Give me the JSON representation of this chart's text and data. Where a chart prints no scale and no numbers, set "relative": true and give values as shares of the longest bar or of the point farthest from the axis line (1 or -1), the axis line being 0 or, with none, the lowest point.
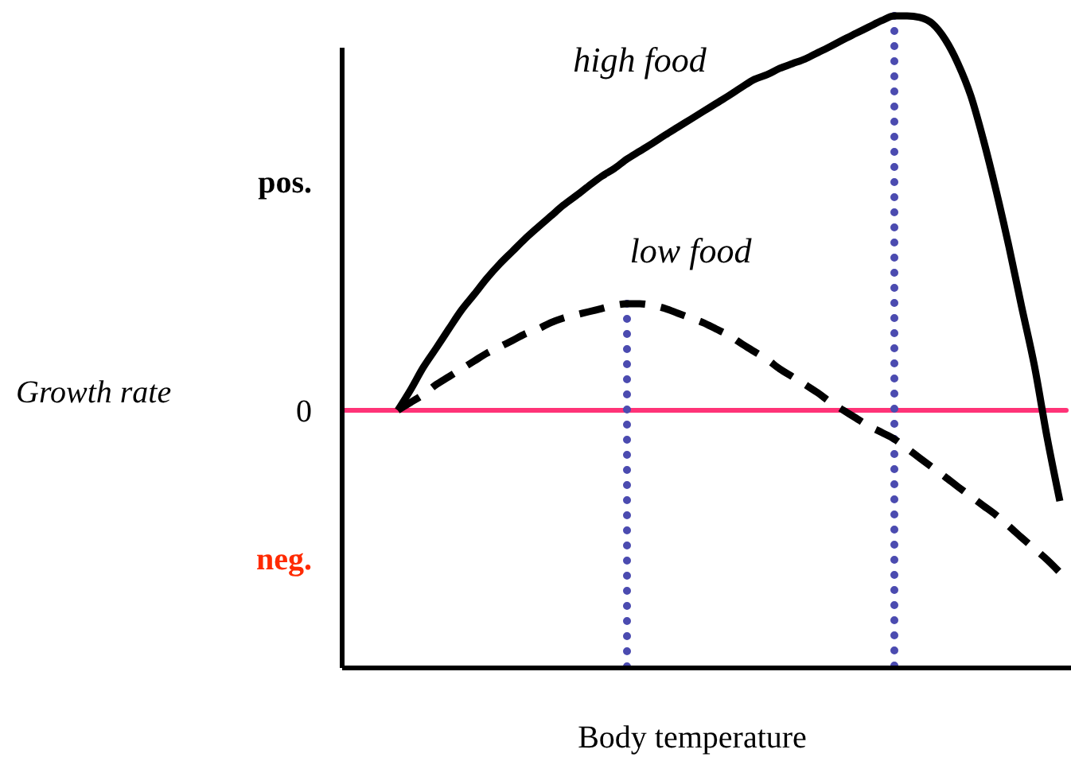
{
  "chart_data": {
    "type": "line",
    "relative": true,
    "xlabel": "Body temperature",
    "categories": [
      null,
      null,
      null,
      null,
      null,
      null,
      null,
      null,
      null,
      null,
      null,
      null,
      null,
      null,
      null,
      null,
      null,
      null,
      null,
      null,
      null,
      null,
      null,
      null,
      null,
      null,
      null,
      null,
      null,
      null,
      null,
      null,
      null,
      null,
      null,
      null,
      null,
      null,
      null,
      null,
      null,
      null,
      null,
      null,
      null,
      null,
      null,
      null,
      null,
      null,
      null,
      null,
      null
    ],
    "series": [
      {
        "name": "high food",
        "color": "#000000",
        "line_style": "solid",
        "values": [
          0,
          0.052,
          0.109,
          0.157,
          0.206,
          0.254,
          0.294,
          0.335,
          0.371,
          0.403,
          0.435,
          0.464,
          0.492,
          0.52,
          0.544,
          0.569,
          0.593,
          0.613,
          0.637,
          0.657,
          0.677,
          0.698,
          0.718,
          0.738,
          0.758,
          0.778,
          0.798,
          0.819,
          0.839,
          0.851,
          0.867,
          0.879,
          0.891,
          0.907,
          0.923,
          0.94,
          0.956,
          0.972,
          0.988,
          1,
          1,
          0.996,
          0.98,
          0.94,
          0.879,
          0.798,
          0.685,
          0.556,
          0.415,
          0.262,
          0.113,
          -0.069,
          -0.23
        ]
      },
      {
        "name": "low food",
        "color": "#000000",
        "line_style": "dashed",
        "values": [
          0,
          0.02,
          0.04,
          0.065,
          0.085,
          0.105,
          0.125,
          0.145,
          0.161,
          0.177,
          0.194,
          0.206,
          0.222,
          0.234,
          0.242,
          0.25,
          0.258,
          0.266,
          0.27,
          0.27,
          0.266,
          0.258,
          0.246,
          0.234,
          0.222,
          0.206,
          0.19,
          0.169,
          0.149,
          0.129,
          0.105,
          0.085,
          0.065,
          0.044,
          0.02,
          0,
          -0.02,
          -0.04,
          -0.056,
          -0.073,
          -0.097,
          -0.121,
          -0.145,
          -0.169,
          -0.194,
          -0.218,
          -0.242,
          -0.266,
          -0.294,
          -0.323,
          -0.351,
          -0.379,
          -0.411
        ]
      }
    ],
    "ref_lines": [
      {
        "axis": "y",
        "value": 0,
        "label": "0",
        "color": "#ff3377",
        "line_style": "solid"
      }
    ],
    "annotations": [
      "pos.",
      "Growth rate",
      "neg."
    ]
  }
}
